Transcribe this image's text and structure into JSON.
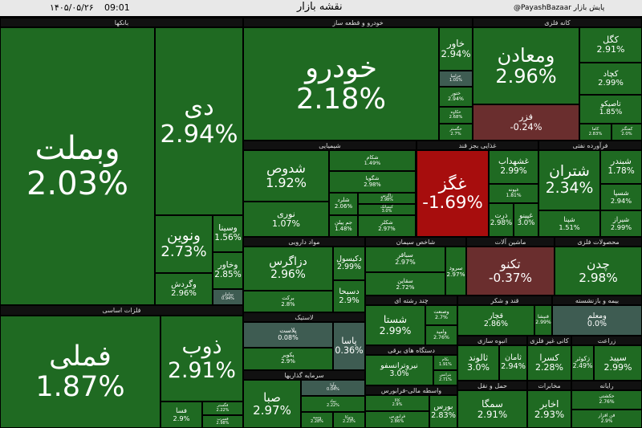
{
  "header": {
    "date": "۱۴۰۵/۰۵/۲۶",
    "time": "09:01",
    "title": "نقشه بازار",
    "brand": "@PayashBazaar پایش بازار"
  },
  "sectors": [
    {
      "name": "بانکها",
      "tiles": [
        {
          "name": "وبملت",
          "change": "2.03%"
        },
        {
          "name": "دی",
          "change": "2.94%"
        },
        {
          "name": "ونوین",
          "change": "2.73%"
        },
        {
          "name": "وگردش",
          "change": "2.96%"
        },
        {
          "name": "وسینا",
          "change": "1.56%"
        },
        {
          "name": "وخاور",
          "change": "2.85%"
        },
        {
          "name": "سامان",
          "change": "0.94%"
        }
      ]
    },
    {
      "name": "فلزات اساسی",
      "tiles": [
        {
          "name": "فملی",
          "change": "1.87%"
        },
        {
          "name": "ذوب",
          "change": "2.91%"
        },
        {
          "name": "فسا",
          "change": "2.9%"
        },
        {
          "name": "فگستر",
          "change": "2.22%"
        },
        {
          "name": "فسرب",
          "change": "2.98%"
        }
      ]
    },
    {
      "name": "خودرو و قطعه ساز",
      "tiles": [
        {
          "name": "خودرو",
          "change": "2.18%"
        },
        {
          "name": "خاور",
          "change": "2.94%"
        },
        {
          "name": "خزامیا",
          "change": "1.01%"
        },
        {
          "name": "ختور",
          "change": "2.94%"
        },
        {
          "name": "خکاوه",
          "change": "2.68%"
        },
        {
          "name": "خگستر",
          "change": "2.7%"
        }
      ]
    },
    {
      "name": "کانه فلزی",
      "tiles": [
        {
          "name": "ومعادن",
          "change": "2.96%"
        },
        {
          "name": "کگل",
          "change": "2.91%"
        },
        {
          "name": "کچاد",
          "change": "2.99%"
        },
        {
          "name": "تاصیکو",
          "change": "1.85%"
        },
        {
          "name": "فزر",
          "change": "-0.24%"
        },
        {
          "name": "کاما",
          "change": "2.83%"
        },
        {
          "name": "کمنگنز",
          "change": "2.0%"
        }
      ]
    },
    {
      "name": "شیمیایی",
      "tiles": [
        {
          "name": "شکام",
          "change": "1.49%"
        },
        {
          "name": "شگویا",
          "change": "2.98%"
        },
        {
          "name": "شدوص",
          "change": "1.92%"
        },
        {
          "name": "نوری",
          "change": "1.07%"
        },
        {
          "name": "شلرد",
          "change": "2.06%"
        },
        {
          "name": "زاگرس",
          "change": "2.98%"
        },
        {
          "name": "کیمیاتک",
          "change": "3.0%"
        },
        {
          "name": "جم پیلن",
          "change": "1.48%"
        },
        {
          "name": "شکلر",
          "change": "2.97%"
        }
      ]
    },
    {
      "name": "غذایی بجز قند",
      "tiles": [
        {
          "name": "غگز",
          "change": "-1.69%"
        },
        {
          "name": "غشهداب",
          "change": "2.99%"
        },
        {
          "name": "غپونه",
          "change": "1.81%"
        },
        {
          "name": "ذرت",
          "change": "2.98%"
        },
        {
          "name": "غپینو",
          "change": "3.0%"
        }
      ]
    },
    {
      "name": "فرآورده نفتی",
      "tiles": [
        {
          "name": "شتران",
          "change": "2.34%"
        },
        {
          "name": "شبندر",
          "change": "1.78%"
        },
        {
          "name": "شسپا",
          "change": "2.94%"
        },
        {
          "name": "شپنا",
          "change": "1.51%"
        },
        {
          "name": "شیراز",
          "change": "2.99%"
        }
      ]
    },
    {
      "name": "مواد دارویی",
      "tiles": [
        {
          "name": "دزاگرس",
          "change": "2.96%"
        },
        {
          "name": "دکیسول",
          "change": "2.99%"
        },
        {
          "name": "برکت",
          "change": "2.8%"
        },
        {
          "name": "دسبحا",
          "change": "2.9%"
        }
      ]
    },
    {
      "name": "شاخص سیمان",
      "tiles": [
        {
          "name": "سباقر",
          "change": "2.97%"
        },
        {
          "name": "سقاین",
          "change": "2.72%"
        },
        {
          "name": "سرود",
          "change": "2.97%"
        }
      ]
    },
    {
      "name": "ماشین آلات",
      "tiles": [
        {
          "name": "تکنو",
          "change": "-0.37%"
        }
      ]
    },
    {
      "name": "محصولات فلزی",
      "tiles": [
        {
          "name": "چدن",
          "change": "2.98%"
        }
      ]
    },
    {
      "name": "لاستیک",
      "tiles": [
        {
          "name": "پلاست",
          "change": "0.08%"
        },
        {
          "name": "پکویر",
          "change": "2.9%"
        },
        {
          "name": "پاسا",
          "change": "0.36%"
        }
      ]
    },
    {
      "name": "سرمایه گذاریها",
      "tiles": [
        {
          "name": "صبا",
          "change": "2.97%"
        },
        {
          "name": "وآوا",
          "change": "0.04%"
        },
        {
          "name": "نماد",
          "change": "2.22%"
        },
        {
          "name": "وسپه",
          "change": "2.28%"
        },
        {
          "name": "وتوکا",
          "change": "2.23%"
        }
      ]
    },
    {
      "name": "چند رشته ای",
      "tiles": [
        {
          "name": "شستا",
          "change": "2.99%"
        },
        {
          "name": "وصنعت",
          "change": "2.7%"
        },
        {
          "name": "وامید",
          "change": "2.76%"
        }
      ]
    },
    {
      "name": "قند و شکر",
      "tiles": [
        {
          "name": "قچار",
          "change": "2.86%"
        },
        {
          "name": "قنیشا",
          "change": "2.99%"
        }
      ]
    },
    {
      "name": "بیمه و بازنشسته",
      "tiles": [
        {
          "name": "ومعلم",
          "change": "0.0%"
        }
      ]
    },
    {
      "name": "دستگاه های برقی",
      "tiles": [
        {
          "name": "نیروترانسفو",
          "change": "3.0%"
        },
        {
          "name": "بکام",
          "change": "1.91%"
        },
        {
          "name": "بترانس",
          "change": "2.71%"
        }
      ]
    },
    {
      "name": "انبوه سازی",
      "tiles": [
        {
          "name": "ثالوند",
          "change": "3.0%"
        },
        {
          "name": "ثامان",
          "change": "2.94%"
        }
      ]
    },
    {
      "name": "کانی غیر فلزی",
      "tiles": [
        {
          "name": "کسرا",
          "change": "2.28%"
        }
      ]
    },
    {
      "name": "زراعت",
      "tiles": [
        {
          "name": "سپید",
          "change": "2.99%"
        },
        {
          "name": "زکوثر",
          "change": "2.49%"
        }
      ]
    },
    {
      "name": "واسطه مالی-فرابورس",
      "tiles": [
        {
          "name": "کالا",
          "change": "2.9%"
        },
        {
          "name": "فرابورس",
          "change": "2.86%"
        },
        {
          "name": "بورس",
          "change": "2.83%"
        }
      ]
    },
    {
      "name": "حمل و نقل",
      "tiles": [
        {
          "name": "سمگا",
          "change": "2.91%"
        }
      ]
    },
    {
      "name": "مخابرات",
      "tiles": [
        {
          "name": "اخابر",
          "change": "2.93%"
        }
      ]
    },
    {
      "name": "رایانه",
      "tiles": [
        {
          "name": "حکشتی",
          "change": "2.76%"
        },
        {
          "name": "فن افزار",
          "change": "2.9%"
        }
      ]
    }
  ]
}
